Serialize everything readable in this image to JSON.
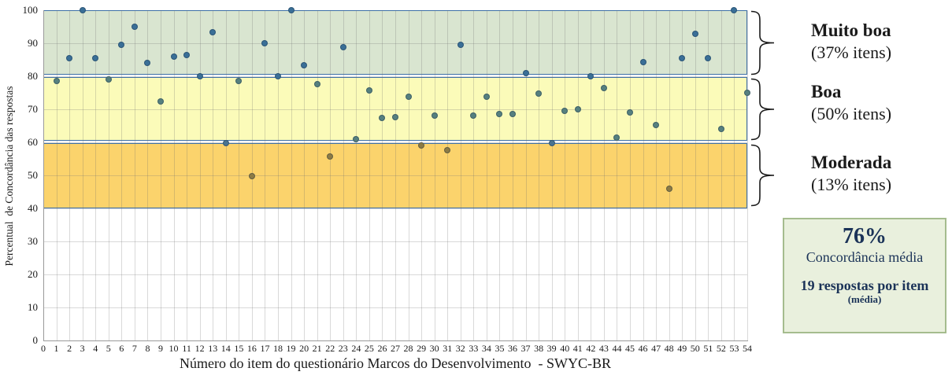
{
  "chart_data": {
    "type": "scatter",
    "x": [
      1,
      2,
      3,
      4,
      5,
      6,
      7,
      8,
      9,
      10,
      11,
      12,
      13,
      14,
      15,
      16,
      17,
      18,
      19,
      20,
      21,
      22,
      23,
      24,
      25,
      26,
      27,
      28,
      29,
      30,
      31,
      32,
      33,
      34,
      35,
      36,
      37,
      38,
      39,
      40,
      41,
      42,
      43,
      44,
      45,
      46,
      47,
      48,
      49,
      50,
      51,
      52,
      53,
      54
    ],
    "values": [
      78.5,
      85.5,
      100,
      85.5,
      79,
      89.5,
      95,
      84,
      72.3,
      86,
      86.5,
      80,
      93.3,
      59.7,
      78.5,
      49.7,
      90,
      80,
      100,
      83.3,
      77.7,
      55.6,
      88.8,
      61,
      75.8,
      67.5,
      67.7,
      73.8,
      59,
      68,
      57.7,
      89.5,
      68,
      73.8,
      68.5,
      68.6,
      81,
      74.7,
      59.7,
      69.5,
      70,
      80,
      76.5,
      61.5,
      69,
      84.3,
      65.2,
      46,
      85.5,
      92.8,
      85.5,
      64,
      100,
      75
    ],
    "xlabel": "Número do item do questionário Marcos do Desenvolvimento  - SWYC-BR",
    "ylabel": "Percentual  de Concordância das respostas",
    "xlim": [
      0,
      54
    ],
    "ylim": [
      0,
      100
    ],
    "grid": true,
    "x_ticks": [
      0,
      1,
      2,
      3,
      4,
      5,
      6,
      7,
      8,
      9,
      10,
      11,
      12,
      13,
      14,
      15,
      16,
      17,
      18,
      19,
      20,
      21,
      22,
      23,
      24,
      25,
      26,
      27,
      28,
      29,
      30,
      31,
      32,
      33,
      34,
      35,
      36,
      37,
      38,
      39,
      40,
      41,
      42,
      43,
      44,
      45,
      46,
      47,
      48,
      49,
      50,
      51,
      52,
      53,
      54
    ],
    "y_ticks": [
      0,
      10,
      20,
      30,
      40,
      50,
      60,
      70,
      80,
      90,
      100
    ],
    "bands": [
      {
        "label": "Muito boa",
        "pct_itens": "37%",
        "range": [
          80,
          100
        ],
        "color_key": "band_green"
      },
      {
        "label": "Boa",
        "pct_itens": "50%",
        "range": [
          60,
          80
        ],
        "color_key": "band_yellow"
      },
      {
        "label": "Moderada",
        "pct_itens": "13%",
        "range": [
          40,
          60
        ],
        "color_key": "band_orange"
      }
    ],
    "legend_position": "right"
  },
  "legend": {
    "zones": [
      {
        "name": "Muito boa",
        "detail": "(37% itens)"
      },
      {
        "name": "Boa",
        "detail": "(50% itens)"
      },
      {
        "name": "Moderada",
        "detail": "(13% itens)"
      }
    ]
  },
  "summary_box": {
    "value": "76%",
    "label": "Concordância média",
    "line2": "19 respostas por item",
    "line3": "(média)"
  },
  "colors": {
    "band_green": "#d9e5d0",
    "band_yellow": "#fbfbb9",
    "band_orange": "#fbd36c",
    "band_border": "#3d6fa5",
    "marker_high": "#3a6f97",
    "marker_mid": "#56807f",
    "marker_edge": "#4a7390",
    "marker_low": "#8c7b45",
    "box_bg": "#e9f0dd",
    "box_border": "#a5bc8e",
    "box_text": "#1b3358",
    "axis": "#9a9a9a",
    "text": "#1a1a1a"
  }
}
